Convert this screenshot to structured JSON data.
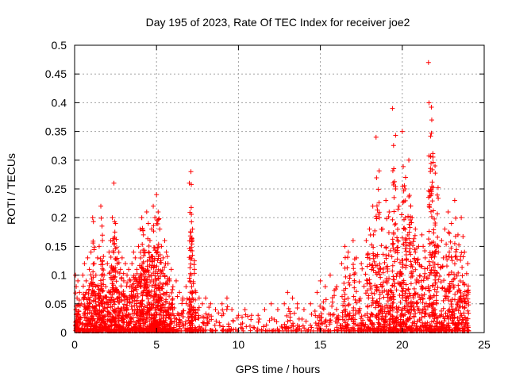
{
  "chart_data": {
    "type": "scatter",
    "title": "Day 195 of 2023, Rate Of TEC Index for receiver joe2",
    "xlabel": "GPS time / hours",
    "ylabel": "ROTI / TECUs",
    "xlim": [
      0,
      25
    ],
    "ylim": [
      0,
      0.5
    ],
    "xticks": [
      "0",
      "5",
      "10",
      "15",
      "20",
      "25"
    ],
    "xtick_values": [
      0,
      5,
      10,
      15,
      20,
      25
    ],
    "yticks": [
      "0",
      "0.05",
      "0.1",
      "0.15",
      "0.2",
      "0.25",
      "0.3",
      "0.35",
      "0.4",
      "0.45",
      "0.5"
    ],
    "ytick_values": [
      0,
      0.05,
      0.1,
      0.15,
      0.2,
      0.25,
      0.3,
      0.35,
      0.4,
      0.45,
      0.5
    ],
    "grid": true,
    "marker": "+",
    "color": "#ff0000",
    "series": [
      {
        "x": [
          0.05,
          0.1,
          0.15,
          0.2,
          0.3,
          0.4,
          0.5,
          0.6,
          0.7,
          0.8,
          0.9,
          1.0,
          1.1,
          1.2,
          1.3,
          1.4,
          1.5,
          1.6,
          1.7,
          1.8,
          1.9,
          2.0,
          2.1,
          2.2,
          2.3,
          2.4,
          2.5,
          2.6,
          2.7,
          2.8,
          2.9,
          3.0,
          3.1,
          3.2,
          3.3,
          3.4,
          3.5,
          3.6,
          3.7,
          3.8,
          3.9,
          4.0,
          4.1,
          4.2,
          4.3,
          4.4,
          4.5,
          4.6,
          4.7,
          4.8,
          4.9,
          5.0,
          5.1,
          5.2,
          5.3,
          5.4,
          5.5,
          5.6,
          5.7,
          5.8,
          5.9,
          6.0,
          6.2,
          6.4,
          6.6,
          6.8,
          7.0,
          7.1,
          7.2,
          7.4,
          7.6,
          7.8,
          8.0,
          8.3,
          8.6,
          9.0,
          9.3,
          9.6,
          10.0,
          10.4,
          10.8,
          11.2,
          11.6,
          12.0,
          12.4,
          12.8,
          13.0,
          13.3,
          13.6,
          14.0,
          14.4,
          14.8,
          15.0,
          15.3,
          15.6,
          16.0,
          16.3,
          16.5,
          16.7,
          17.0,
          17.2,
          17.5,
          17.8,
          18.0,
          18.2,
          18.4,
          18.6,
          18.8,
          19.0,
          19.2,
          19.4,
          19.6,
          19.8,
          20.0,
          20.2,
          20.4,
          20.6,
          20.8,
          21.0,
          21.2,
          21.4,
          21.6,
          21.8,
          22.0,
          22.2,
          22.4,
          22.6,
          22.8,
          23.0,
          23.2,
          23.4,
          23.6,
          23.8,
          24.0
        ],
        "y": [
          0.1,
          0.08,
          0.06,
          0.09,
          0.07,
          0.05,
          0.1,
          0.12,
          0.09,
          0.13,
          0.11,
          0.14,
          0.2,
          0.12,
          0.1,
          0.13,
          0.15,
          0.22,
          0.16,
          0.1,
          0.08,
          0.12,
          0.14,
          0.16,
          0.2,
          0.26,
          0.19,
          0.12,
          0.14,
          0.11,
          0.13,
          0.09,
          0.12,
          0.1,
          0.11,
          0.09,
          0.12,
          0.14,
          0.13,
          0.11,
          0.15,
          0.18,
          0.2,
          0.17,
          0.14,
          0.21,
          0.19,
          0.16,
          0.18,
          0.22,
          0.2,
          0.24,
          0.21,
          0.18,
          0.15,
          0.13,
          0.16,
          0.14,
          0.12,
          0.09,
          0.11,
          0.08,
          0.09,
          0.07,
          0.06,
          0.08,
          0.26,
          0.28,
          0.18,
          0.07,
          0.06,
          0.05,
          0.06,
          0.05,
          0.04,
          0.05,
          0.06,
          0.04,
          0.03,
          0.04,
          0.03,
          0.03,
          0.04,
          0.05,
          0.04,
          0.05,
          0.07,
          0.06,
          0.05,
          0.04,
          0.05,
          0.07,
          0.09,
          0.08,
          0.1,
          0.08,
          0.12,
          0.15,
          0.14,
          0.16,
          0.13,
          0.12,
          0.16,
          0.18,
          0.22,
          0.34,
          0.2,
          0.18,
          0.23,
          0.21,
          0.39,
          0.25,
          0.22,
          0.35,
          0.27,
          0.3,
          0.2,
          0.18,
          0.15,
          0.17,
          0.13,
          0.47,
          0.37,
          0.29,
          0.14,
          0.16,
          0.18,
          0.21,
          0.19,
          0.23,
          0.17,
          0.2,
          0.14,
          0.12
        ],
        "baseline_min": 0.0,
        "density_note": ""
      }
    ]
  }
}
